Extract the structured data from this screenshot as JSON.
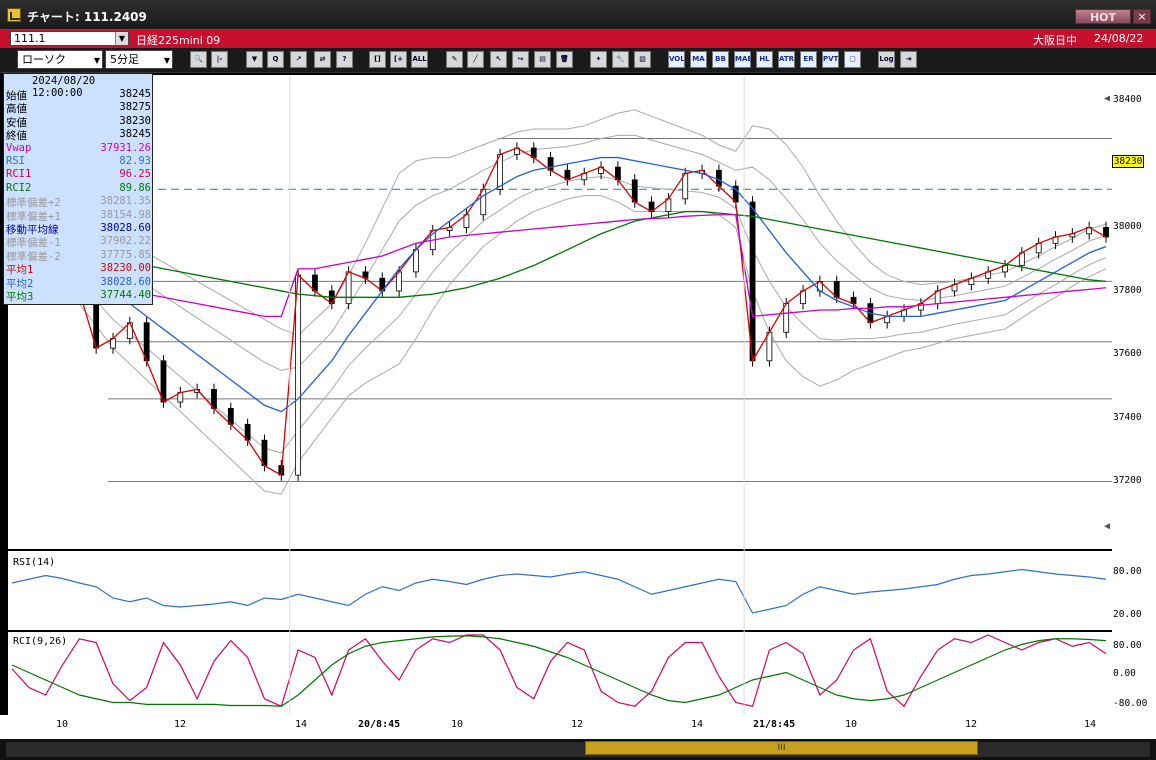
{
  "window": {
    "title": "チャート: 111.2409",
    "hot_label": "HOT",
    "close_label": "×"
  },
  "header": {
    "symbol_code": "111.1",
    "symbol_name": "日経225mini 09",
    "session": "大阪日中",
    "date": "24/08/22"
  },
  "toolbar": {
    "chart_type": "ローソク",
    "interval": "5分足",
    "buttons": [
      {
        "icon": "zoom-icon",
        "label": "🔍"
      },
      {
        "icon": "cursor-icon",
        "label": "|-"
      },
      {
        "icon": "candle-marker-icon",
        "label": "▼"
      },
      {
        "icon": "search-chart-icon",
        "label": "Q"
      },
      {
        "icon": "trendline-icon",
        "label": "↗"
      },
      {
        "icon": "arrow-icon",
        "label": "⇄"
      },
      {
        "icon": "disabled-icon",
        "label": "?"
      },
      {
        "icon": "candle-icon",
        "label": "[]"
      },
      {
        "icon": "candle-add-icon",
        "label": "[+"
      },
      {
        "icon": "all-icon",
        "label": "ALL"
      },
      {
        "icon": "pen-icon",
        "label": "✎"
      },
      {
        "icon": "line-icon",
        "label": "╱"
      },
      {
        "icon": "pointer-icon",
        "label": "↖"
      },
      {
        "icon": "curve-arrow-icon",
        "label": "↪"
      },
      {
        "icon": "notes-icon",
        "label": "▤"
      },
      {
        "icon": "trash-icon",
        "label": "🗑"
      },
      {
        "icon": "settings-icon",
        "label": "✦"
      },
      {
        "icon": "wrench-icon",
        "label": "🔧"
      },
      {
        "icon": "palette-icon",
        "label": "▨"
      },
      {
        "icon": "vol-icon",
        "label": "VOL"
      },
      {
        "icon": "ma-icon",
        "label": "MA"
      },
      {
        "icon": "bb-icon",
        "label": "BB"
      },
      {
        "icon": "mae-icon",
        "label": "MAE"
      },
      {
        "icon": "hl-icon",
        "label": "HL"
      },
      {
        "icon": "atr-icon",
        "label": "ATR"
      },
      {
        "icon": "er-icon",
        "label": "ER"
      },
      {
        "icon": "pvt-icon",
        "label": "PVT"
      },
      {
        "icon": "box-icon",
        "label": "▢"
      },
      {
        "icon": "log-icon",
        "label": "Log"
      },
      {
        "icon": "export-icon",
        "label": "⇥"
      }
    ]
  },
  "info_panel": {
    "datetime": "2024/08/20  12:00:00",
    "rows": [
      {
        "label": "始値",
        "value": "38245",
        "color": "#000000"
      },
      {
        "label": "高値",
        "value": "38275",
        "color": "#000000"
      },
      {
        "label": "安値",
        "value": "38230",
        "color": "#000000"
      },
      {
        "label": "終値",
        "value": "38245",
        "color": "#000000"
      },
      {
        "label": "Vwap",
        "value": "37931.26",
        "color": "#cc00cc"
      },
      {
        "label": "RSI",
        "value": "82.93",
        "color": "#3070d0"
      },
      {
        "label": "RCI1",
        "value": "96.25",
        "color": "#dd0044"
      },
      {
        "label": "RCI2",
        "value": "89.86",
        "color": "#007700"
      },
      {
        "label": "標準偏差+2",
        "value": "38281.35",
        "color": "#999999"
      },
      {
        "label": "標準偏差+1",
        "value": "38154.98",
        "color": "#999999"
      },
      {
        "label": "移動平均線",
        "value": "38028.60",
        "color": "#0000aa"
      },
      {
        "label": "標準偏差-1",
        "value": "37902.22",
        "color": "#999999"
      },
      {
        "label": "標準偏差-2",
        "value": "37775.85",
        "color": "#999999"
      },
      {
        "label": "平均1",
        "value": "38230.00",
        "color": "#dd0000"
      },
      {
        "label": "平均2",
        "value": "38028.60",
        "color": "#2060e0"
      },
      {
        "label": "平均3",
        "value": "37744.40",
        "color": "#007700"
      }
    ]
  },
  "price_axis": {
    "labels": [
      "38400",
      "38200",
      "38000",
      "37800",
      "37600",
      "37400",
      "37200"
    ],
    "current_price": "38230",
    "range": [
      37000,
      38480
    ]
  },
  "rsi_pane": {
    "title": "RSI(14)",
    "labels": [
      "80.00",
      "20.00"
    ]
  },
  "rci_pane": {
    "title": "RCI(9,26)",
    "labels": [
      "80.00",
      "0.00",
      "-80.00"
    ]
  },
  "time_axis": {
    "labels": [
      {
        "text": "10",
        "bold": false
      },
      {
        "text": "12",
        "bold": false
      },
      {
        "text": "14",
        "bold": false
      },
      {
        "text": "20/8:45",
        "bold": true
      },
      {
        "text": "10",
        "bold": false
      },
      {
        "text": "12",
        "bold": false
      },
      {
        "text": "14",
        "bold": false
      },
      {
        "text": "21/8:45",
        "bold": true
      },
      {
        "text": "10",
        "bold": false
      },
      {
        "text": "12",
        "bold": false
      },
      {
        "text": "14",
        "bold": false
      }
    ]
  },
  "scrollbar": {
    "thumb_label": "III"
  },
  "chart_data": {
    "type": "line",
    "title": "",
    "instrument": "日経225mini 09",
    "interval": "5分足",
    "ylim": [
      37000,
      38480
    ],
    "yticks": [
      37200,
      37400,
      37600,
      37800,
      38000,
      38200,
      38400
    ],
    "x_ticks": [
      "10",
      "12",
      "14",
      "20/8:45",
      "10",
      "12",
      "14",
      "21/8:45",
      "10",
      "12",
      "14"
    ],
    "series": [
      {
        "name": "平均1",
        "color": "#dd0000",
        "values": [
          38000,
          37980,
          37950,
          37920,
          37800,
          37620,
          37650,
          37700,
          37580,
          37450,
          37480,
          37490,
          37430,
          37380,
          37330,
          37250,
          37220,
          37850,
          37800,
          37760,
          37860,
          37840,
          37800,
          37860,
          37930,
          37990,
          38000,
          38040,
          38120,
          38230,
          38250,
          38220,
          38180,
          38150,
          38170,
          38190,
          38150,
          38080,
          38050,
          38090,
          38170,
          38180,
          38130,
          38080,
          37580,
          37670,
          37760,
          37800,
          37830,
          37780,
          37760,
          37700,
          37720,
          37740,
          37760,
          37800,
          37820,
          37840,
          37860,
          37880,
          37920,
          37950,
          37970,
          37980,
          38000,
          37970
        ]
      },
      {
        "name": "平均2",
        "color": "#2060e0",
        "values": [
          38000,
          37990,
          37970,
          37940,
          37900,
          37850,
          37800,
          37760,
          37720,
          37680,
          37640,
          37600,
          37560,
          37520,
          37480,
          37440,
          37420,
          37460,
          37520,
          37580,
          37660,
          37730,
          37800,
          37870,
          37930,
          37980,
          38020,
          38060,
          38100,
          38130,
          38160,
          38180,
          38190,
          38200,
          38210,
          38220,
          38220,
          38210,
          38200,
          38190,
          38180,
          38170,
          38150,
          38120,
          38060,
          37990,
          37920,
          37860,
          37800,
          37770,
          37750,
          37730,
          37720,
          37720,
          37720,
          37730,
          37740,
          37750,
          37760,
          37770,
          37800,
          37830,
          37860,
          37890,
          37920,
          37940
        ]
      },
      {
        "name": "平均3",
        "color": "#007700",
        "values": [
          37960,
          37940,
          37920,
          37910,
          37900,
          37895,
          37890,
          37885,
          37880,
          37870,
          37860,
          37850,
          37840,
          37830,
          37820,
          37810,
          37800,
          37790,
          37785,
          37780,
          37780,
          37780,
          37780,
          37780,
          37785,
          37790,
          37800,
          37810,
          37825,
          37840,
          37860,
          37880,
          37905,
          37930,
          37955,
          37980,
          38000,
          38020,
          38030,
          38040,
          38050,
          38050,
          38045,
          38040,
          38035,
          38025,
          38015,
          38005,
          37995,
          37985,
          37975,
          37965,
          37955,
          37945,
          37935,
          37925,
          37915,
          37905,
          37895,
          37885,
          37875,
          37865,
          37855,
          37845,
          37835,
          37830
        ]
      },
      {
        "name": "Vwap",
        "color": "#cc00cc",
        "values": [
          37900,
          37890,
          37880,
          37860,
          37840,
          37820,
          37810,
          37800,
          37790,
          37780,
          37770,
          37760,
          37750,
          37740,
          37730,
          37720,
          37720,
          37870,
          37870,
          37880,
          37890,
          37900,
          37910,
          37930,
          37950,
          37960,
          37970,
          37975,
          37980,
          37985,
          37990,
          37995,
          38000,
          38005,
          38010,
          38015,
          38020,
          38025,
          38028,
          38030,
          38035,
          38038,
          38040,
          38040,
          37720,
          37725,
          37730,
          37735,
          37740,
          37740,
          37745,
          37745,
          37750,
          37750,
          37755,
          37760,
          37765,
          37770,
          37775,
          37780,
          37785,
          37790,
          37795,
          37800,
          37805,
          37810
        ]
      }
    ],
    "reference_line": 38120,
    "rsi": [
      60,
      65,
      70,
      66,
      60,
      55,
      40,
      35,
      40,
      30,
      28,
      30,
      32,
      35,
      30,
      40,
      38,
      45,
      40,
      35,
      30,
      45,
      55,
      50,
      60,
      65,
      62,
      58,
      65,
      70,
      72,
      70,
      68,
      72,
      75,
      70,
      65,
      55,
      45,
      50,
      55,
      60,
      65,
      62,
      20,
      25,
      30,
      45,
      55,
      50,
      45,
      48,
      50,
      52,
      55,
      58,
      65,
      70,
      72,
      75,
      78,
      75,
      72,
      70,
      68,
      65
    ],
    "rci1": [
      10,
      -40,
      -60,
      20,
      90,
      80,
      -30,
      -75,
      -40,
      80,
      20,
      -70,
      30,
      85,
      40,
      -70,
      -90,
      60,
      40,
      -60,
      60,
      90,
      30,
      -20,
      60,
      90,
      80,
      100,
      100,
      60,
      -40,
      -70,
      30,
      80,
      60,
      -50,
      -80,
      -90,
      -50,
      40,
      80,
      80,
      -10,
      -80,
      -90,
      60,
      80,
      50,
      -60,
      -20,
      60,
      90,
      -50,
      -90,
      -10,
      60,
      90,
      80,
      100,
      80,
      60,
      80,
      90,
      70,
      80,
      50
    ],
    "rci2": [
      20,
      0,
      -20,
      -40,
      -60,
      -70,
      -80,
      -80,
      -85,
      -85,
      -85,
      -85,
      -85,
      -88,
      -88,
      -88,
      -90,
      -60,
      -20,
      20,
      50,
      70,
      80,
      85,
      90,
      95,
      97,
      98,
      95,
      90,
      80,
      70,
      55,
      40,
      20,
      0,
      -20,
      -40,
      -60,
      -75,
      -80,
      -70,
      -60,
      -40,
      -20,
      -10,
      0,
      -20,
      -40,
      -60,
      -70,
      -75,
      -70,
      -60,
      -40,
      -20,
      0,
      20,
      40,
      60,
      75,
      85,
      90,
      90,
      88,
      85
    ]
  }
}
